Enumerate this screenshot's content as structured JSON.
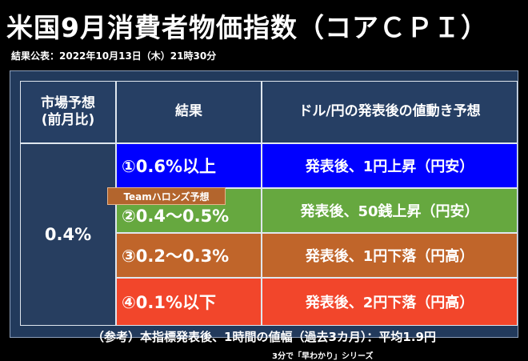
{
  "header": {
    "title": "米国9月消費者物価指数（コアＣＰＩ）",
    "release": "結果公表：2022年10月13日（木）21時30分"
  },
  "table": {
    "headers": {
      "expectation": "市場予想\n(前月比)",
      "result": "結果",
      "forecast": "ドル/円の発表後の値動き予想"
    },
    "expectation_value": "0.4%",
    "badge": "Teamハロンズ予想",
    "rows": [
      {
        "result": "①0.6%以上",
        "forecast": "発表後、1円上昇（円安）",
        "color": "#0000ff"
      },
      {
        "result": "②0.4～0.5%",
        "forecast": "発表後、50銭上昇（円安）",
        "color": "#66a83f"
      },
      {
        "result": "③0.2～0.3%",
        "forecast": "発表後、1円下落（円高）",
        "color": "#c0652a"
      },
      {
        "result": "④0.1%以下",
        "forecast": "発表後、2円下落（円高）",
        "color": "#f2462b"
      }
    ]
  },
  "footer": {
    "note": "（参考）本指標発表後、1時間の値幅（過去3カ月）：平均1.9円",
    "series": "3分で「早わかり」シリーズ"
  }
}
